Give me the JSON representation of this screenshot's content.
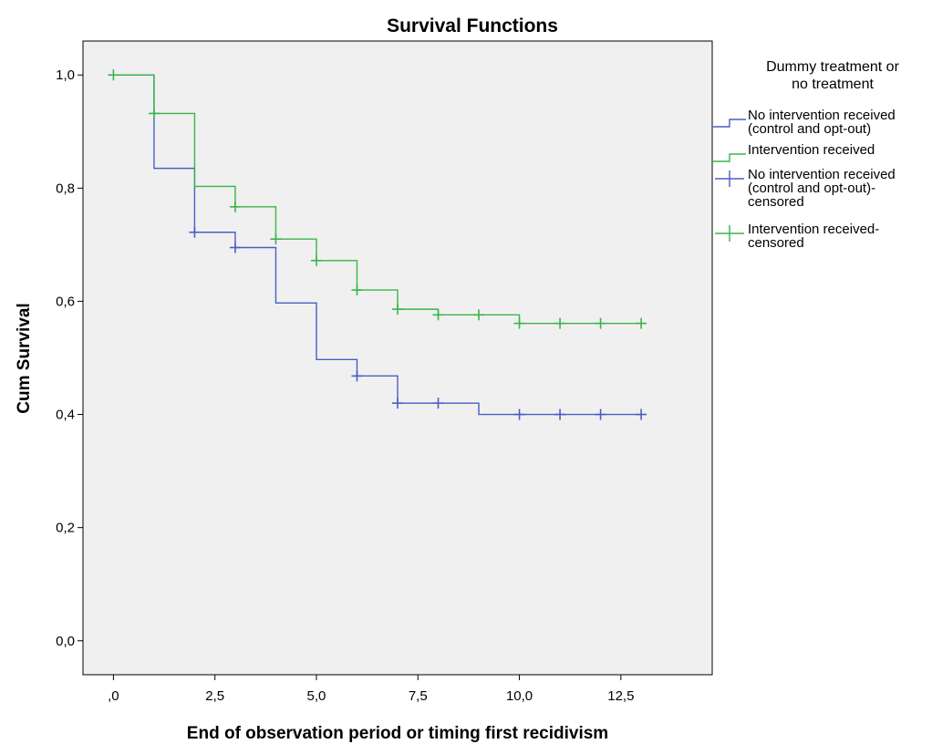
{
  "chart_data": {
    "type": "line",
    "title": "Survival Functions",
    "xlabel": "End of observation period or timing first recidivism",
    "ylabel": "Cum Survival",
    "xlim": [
      -0.75,
      14.75
    ],
    "ylim": [
      -0.06,
      1.06
    ],
    "x_ticks": [
      0,
      2.5,
      5,
      7.5,
      10,
      12.5
    ],
    "x_tick_labels": [
      ",0",
      "2,5",
      "5,0",
      "7,5",
      "10,0",
      "12,5"
    ],
    "y_ticks": [
      0,
      0.2,
      0.4,
      0.6,
      0.8,
      1.0
    ],
    "y_tick_labels": [
      "0,0",
      "0,2",
      "0,4",
      "0,6",
      "0,8",
      "1,0"
    ],
    "grid": false,
    "legend_position": "right",
    "legend_title": "Dummy treatment or no treatment",
    "legend": [
      {
        "label_lines": [
          "No intervention received",
          "(control and opt-out)"
        ],
        "kind": "line",
        "color": "#4a5ec4"
      },
      {
        "label_lines": [
          "Intervention received"
        ],
        "kind": "line",
        "color": "#39b54a"
      },
      {
        "label_lines": [
          "No intervention received",
          "(control and opt-out)-",
          "censored"
        ],
        "kind": "censor",
        "color": "#4a5ec4"
      },
      {
        "label_lines": [
          "Intervention received-",
          "censored"
        ],
        "kind": "censor",
        "color": "#39b54a"
      }
    ],
    "series": [
      {
        "name": "No intervention received (control and opt-out)",
        "color": "#4a5ec4",
        "step_x": [
          0,
          1,
          2,
          3,
          4,
          5,
          6,
          7,
          8,
          9,
          10,
          11,
          12,
          13
        ],
        "step_y": [
          1.0,
          0.835,
          0.722,
          0.695,
          0.597,
          0.497,
          0.468,
          0.42,
          0.42,
          0.4,
          0.4,
          0.4,
          0.4,
          0.4
        ],
        "censored_x": [
          2,
          3,
          6,
          7,
          8,
          10,
          11,
          12,
          13
        ]
      },
      {
        "name": "Intervention received",
        "color": "#39b54a",
        "step_x": [
          0,
          1,
          2,
          3,
          4,
          5,
          6,
          7,
          8,
          9,
          10,
          11,
          12,
          13
        ],
        "step_y": [
          1.0,
          0.932,
          0.803,
          0.767,
          0.71,
          0.672,
          0.62,
          0.586,
          0.576,
          0.576,
          0.561,
          0.561,
          0.561,
          0.561
        ],
        "censored_x": [
          0,
          1,
          3,
          4,
          5,
          6,
          7,
          8,
          9,
          10,
          11,
          12,
          13
        ]
      }
    ]
  }
}
